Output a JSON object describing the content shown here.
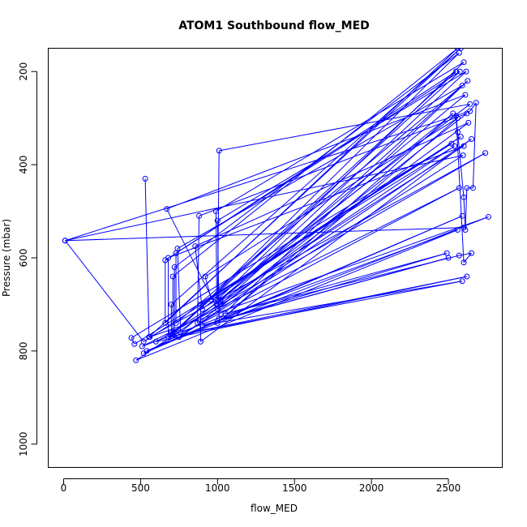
{
  "chart_data": {
    "type": "line",
    "title": "ATOM1 Southbound flow_MED",
    "xlabel": "flow_MED",
    "ylabel": "Pressure (mbar)",
    "xlim": [
      -100,
      2850
    ],
    "ylim": [
      1050,
      150
    ],
    "y_reversed": true,
    "x_ticks": [
      0,
      500,
      1000,
      1500,
      2000,
      2500
    ],
    "y_ticks": [
      200,
      400,
      600,
      800,
      1000
    ],
    "grid": false,
    "legend": "none",
    "series_color": "#0000ff",
    "series": [
      {
        "points": [
          [
            530,
            430
          ],
          [
            555,
            770
          ],
          [
            2580,
            150
          ],
          [
            700,
            700
          ],
          [
            700,
            760
          ],
          [
            2600,
            360
          ],
          [
            680,
            600
          ],
          [
            680,
            770
          ],
          [
            2550,
            200
          ],
          [
            660,
            605
          ],
          [
            660,
            740
          ],
          [
            2560,
            150
          ],
          [
            710,
            640
          ],
          [
            710,
            765
          ],
          [
            2570,
            160
          ],
          [
            720,
            620
          ],
          [
            720,
            760
          ],
          [
            2575,
            200
          ],
          [
            730,
            590
          ],
          [
            730,
            740
          ],
          [
            2590,
            230
          ],
          [
            740,
            580
          ],
          [
            760,
            760
          ],
          [
            2610,
            250
          ],
          [
            670,
            495
          ],
          [
            1000,
            710
          ],
          [
            2620,
            290
          ],
          [
            880,
            510
          ],
          [
            870,
            740
          ],
          [
            2630,
            310
          ],
          [
            855,
            575
          ],
          [
            900,
            710
          ],
          [
            2640,
            270
          ],
          [
            1010,
            370
          ],
          [
            1000,
            690
          ],
          [
            2600,
            180
          ],
          [
            990,
            500
          ],
          [
            995,
            700
          ],
          [
            2615,
            200
          ],
          [
            1000,
            520
          ],
          [
            1010,
            730
          ],
          [
            2625,
            220
          ],
          [
            1020,
            700
          ],
          [
            1020,
            690
          ],
          [
            2530,
            290
          ],
          [
            1000,
            740
          ],
          [
            2560,
            300
          ],
          [
            920,
            640
          ],
          [
            960,
            690
          ],
          [
            2580,
            340
          ],
          [
            890,
            700
          ],
          [
            890,
            780
          ],
          [
            2650,
            345
          ],
          [
            750,
            770
          ],
          [
            2595,
            380
          ],
          [
            10,
            563
          ],
          [
            520,
            780
          ],
          [
            2520,
            355
          ],
          [
            440,
            772
          ],
          [
            460,
            785
          ],
          [
            2540,
            360
          ],
          [
            470,
            820
          ],
          [
            2560,
            540
          ],
          [
            510,
            790
          ],
          [
            2570,
            450
          ],
          [
            520,
            805
          ],
          [
            2590,
            510
          ],
          [
            540,
            800
          ],
          [
            2760,
            512
          ],
          [
            560,
            770
          ],
          [
            2740,
            375
          ],
          [
            600,
            780
          ],
          [
            2620,
            640
          ],
          [
            680,
            770
          ],
          [
            2590,
            650
          ],
          [
            900,
            745
          ],
          [
            2500,
            600
          ],
          [
            1000,
            735
          ],
          [
            2490,
            590
          ],
          [
            1050,
            720
          ],
          [
            2570,
            595
          ],
          [
            2650,
            590
          ],
          [
            2600,
            610
          ],
          [
            2550,
            295
          ],
          [
            2560,
            330
          ],
          [
            2600,
            470
          ],
          [
            2610,
            540
          ],
          [
            2620,
            450
          ],
          [
            2660,
            450
          ],
          [
            2680,
            267
          ],
          [
            2640,
            285
          ],
          [
            10,
            563
          ],
          [
            2600,
            535
          ]
        ]
      }
    ]
  }
}
